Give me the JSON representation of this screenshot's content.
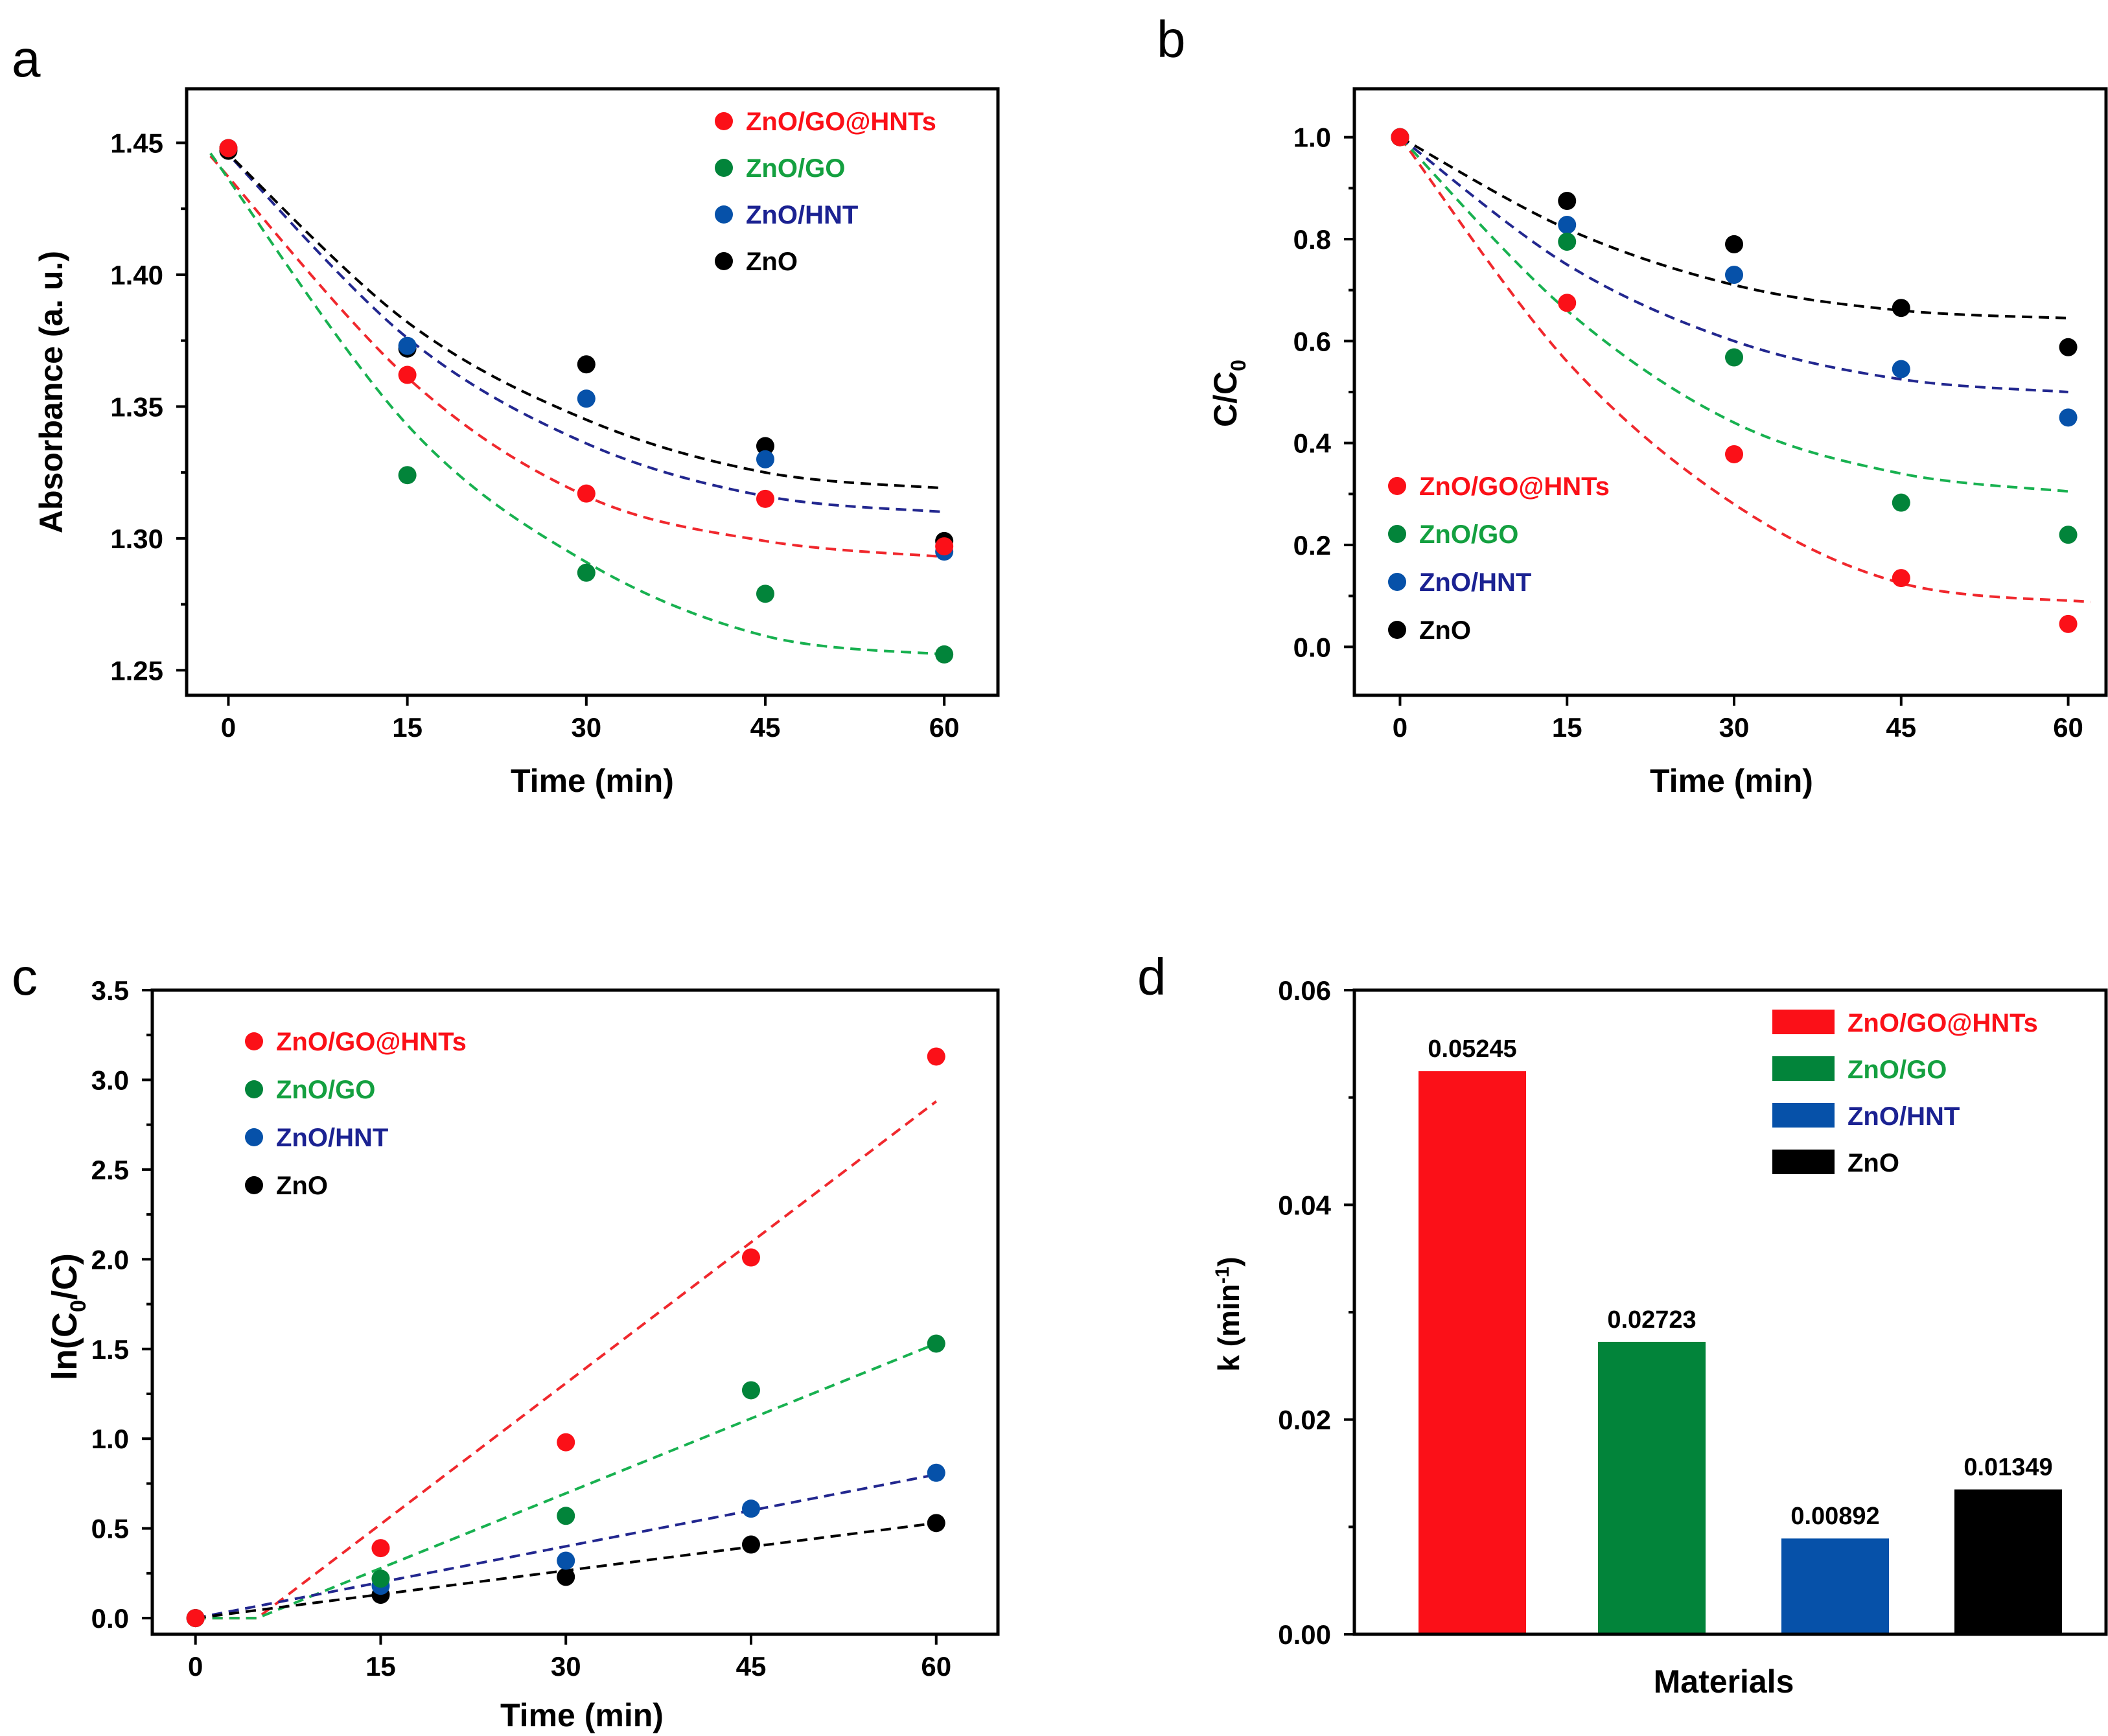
{
  "colors": {
    "ZnO/GO@HNTs": "#fb1018",
    "ZnO/GO": "#02843a",
    "ZnO/HNT": "#0651a9",
    "ZnO": "#000000",
    "ZnO/GO@HNTs_text": "#fb1018",
    "ZnO/GO_text": "#14a040",
    "ZnO/HNT_text": "#1b2292",
    "ZnO_text": "#000000",
    "fit_ZnO/GO@HNTs": "#f0282d",
    "fit_ZnO/GO": "#18b150",
    "fit_ZnO/HNT": "#22278f",
    "fit_ZnO": "#000000"
  },
  "chart_data": [
    {
      "panel": "a",
      "type": "scatter",
      "xlabel": "Time (min)",
      "ylabel": "Absorbance (a. u.)",
      "xlim": [
        -3.5,
        64.5
      ],
      "ylim": [
        1.2405,
        1.4705
      ],
      "xticks": [
        "0",
        "15",
        "30",
        "45",
        "60"
      ],
      "yticks": [
        "1.25",
        "1.30",
        "1.35",
        "1.40",
        "1.45"
      ],
      "x": [
        0,
        15,
        30,
        45,
        60
      ],
      "legend_position": "top-right",
      "series": [
        {
          "name": "ZnO/GO@HNTs",
          "values": [
            1.448,
            1.362,
            1.317,
            1.315,
            1.297
          ],
          "fit": [
            1.445,
            1.361,
            1.316,
            1.299,
            1.293
          ],
          "fit_x": [
            -1.5,
            60
          ]
        },
        {
          "name": "ZnO/GO",
          "values": [
            1.448,
            1.324,
            1.287,
            1.279,
            1.256
          ],
          "fit": [
            1.446,
            1.343,
            1.291,
            1.263,
            1.256
          ],
          "fit_x": [
            -1.5,
            60
          ]
        },
        {
          "name": "ZnO/HNT",
          "values": [
            1.448,
            1.373,
            1.353,
            1.33,
            1.295
          ],
          "fit": [
            1.448,
            1.376,
            1.336,
            1.316,
            1.31
          ],
          "fit_x": [
            -0.5,
            60
          ]
        },
        {
          "name": "ZnO",
          "values": [
            1.447,
            1.372,
            1.366,
            1.335,
            1.299
          ],
          "fit": [
            1.448,
            1.382,
            1.345,
            1.325,
            1.319
          ],
          "fit_x": [
            -0.5,
            60
          ]
        }
      ]
    },
    {
      "panel": "b",
      "type": "scatter",
      "xlabel": "Time (min)",
      "ylabel": "C/C0",
      "xlim": [
        -4.1,
        63.4
      ],
      "ylim": [
        -0.095,
        1.095
      ],
      "xticks": [
        "0",
        "15",
        "30",
        "45",
        "60"
      ],
      "yticks": [
        "0.0",
        "0.2",
        "0.4",
        "0.6",
        "0.8",
        "1.0"
      ],
      "x": [
        0,
        15,
        30,
        45,
        60
      ],
      "legend_position": "bottom-left",
      "series": [
        {
          "name": "ZnO/GO@HNTs",
          "values": [
            1.0,
            0.675,
            0.378,
            0.135,
            0.045
          ],
          "fit": [
            1.0,
            0.56,
            0.28,
            0.125,
            0.088
          ],
          "fit_x": [
            0,
            62
          ]
        },
        {
          "name": "ZnO/GO",
          "values": [
            1.0,
            0.795,
            0.568,
            0.283,
            0.22
          ],
          "fit": [
            1.0,
            0.66,
            0.44,
            0.34,
            0.305
          ],
          "fit_x": [
            0,
            60
          ]
        },
        {
          "name": "ZnO/HNT",
          "values": [
            1.0,
            0.828,
            0.73,
            0.545,
            0.45
          ],
          "fit": [
            1.0,
            0.75,
            0.6,
            0.525,
            0.5
          ],
          "fit_x": [
            0,
            60
          ]
        },
        {
          "name": "ZnO",
          "values": [
            1.0,
            0.875,
            0.79,
            0.665,
            0.588
          ],
          "fit": [
            1.0,
            0.82,
            0.71,
            0.66,
            0.645
          ],
          "fit_x": [
            0,
            60
          ]
        }
      ]
    },
    {
      "panel": "c",
      "type": "scatter",
      "xlabel": "Time (min)",
      "ylabel": "ln(C0/C)",
      "xlim": [
        -3.5,
        65.0
      ],
      "ylim": [
        -0.09,
        3.5
      ],
      "xticks": [
        "0",
        "15",
        "30",
        "45",
        "60"
      ],
      "yticks": [
        "0.0",
        "0.5",
        "1.0",
        "1.5",
        "2.0",
        "2.5",
        "3.0",
        "3.5"
      ],
      "x": [
        0,
        15,
        30,
        45,
        60
      ],
      "legend_position": "top-left",
      "series": [
        {
          "name": "ZnO/GO@HNTs",
          "values": [
            0.0,
            0.39,
            0.98,
            2.01,
            3.13
          ],
          "fit_points": [
            [
              0,
              0
            ],
            [
              5,
              0
            ],
            [
              60,
              2.88
            ]
          ]
        },
        {
          "name": "ZnO/GO",
          "values": [
            0.0,
            0.22,
            0.57,
            1.27,
            1.53
          ],
          "fit_points": [
            [
              0,
              0
            ],
            [
              5,
              0
            ],
            [
              60,
              1.53
            ]
          ]
        },
        {
          "name": "ZnO/HNT",
          "values": [
            0.0,
            0.18,
            0.32,
            0.61,
            0.81
          ],
          "fit_points": [
            [
              0,
              0
            ],
            [
              60,
              0.8
            ]
          ]
        },
        {
          "name": "ZnO",
          "values": [
            0.0,
            0.13,
            0.23,
            0.41,
            0.53
          ],
          "fit_points": [
            [
              0,
              0
            ],
            [
              60,
              0.53
            ]
          ]
        }
      ]
    },
    {
      "panel": "d",
      "type": "bar",
      "xlabel": "Materials",
      "ylabel": "k (min-1)",
      "ylim": [
        0.0,
        0.06
      ],
      "yticks": [
        "0.00",
        "0.02",
        "0.04",
        "0.06"
      ],
      "categories": [
        "ZnO/GO@HNTs",
        "ZnO/GO",
        "ZnO/HNT",
        "ZnO"
      ],
      "values": [
        0.05245,
        0.02723,
        0.00892,
        0.01349
      ],
      "value_labels": [
        "0.05245",
        "0.02723",
        "0.00892",
        "0.01349"
      ],
      "legend_position": "top-right"
    }
  ],
  "panels": {
    "a": {
      "letter": "a",
      "xlabel": "Time (min)",
      "ylabel": "Absorbance (a. u.)"
    },
    "b": {
      "letter": "b",
      "xlabel": "Time (min)",
      "ylabel_main": "C/C",
      "ylabel_sub": "0"
    },
    "c": {
      "letter": "c",
      "xlabel": "Time (min)",
      "ylabel_pre": "ln(C",
      "ylabel_sub": "0",
      "ylabel_post": "/C)"
    },
    "d": {
      "letter": "d",
      "xlabel": "Materials",
      "ylabel_pre": "k (min",
      "ylabel_sup": "-1",
      "ylabel_post": ")"
    }
  }
}
